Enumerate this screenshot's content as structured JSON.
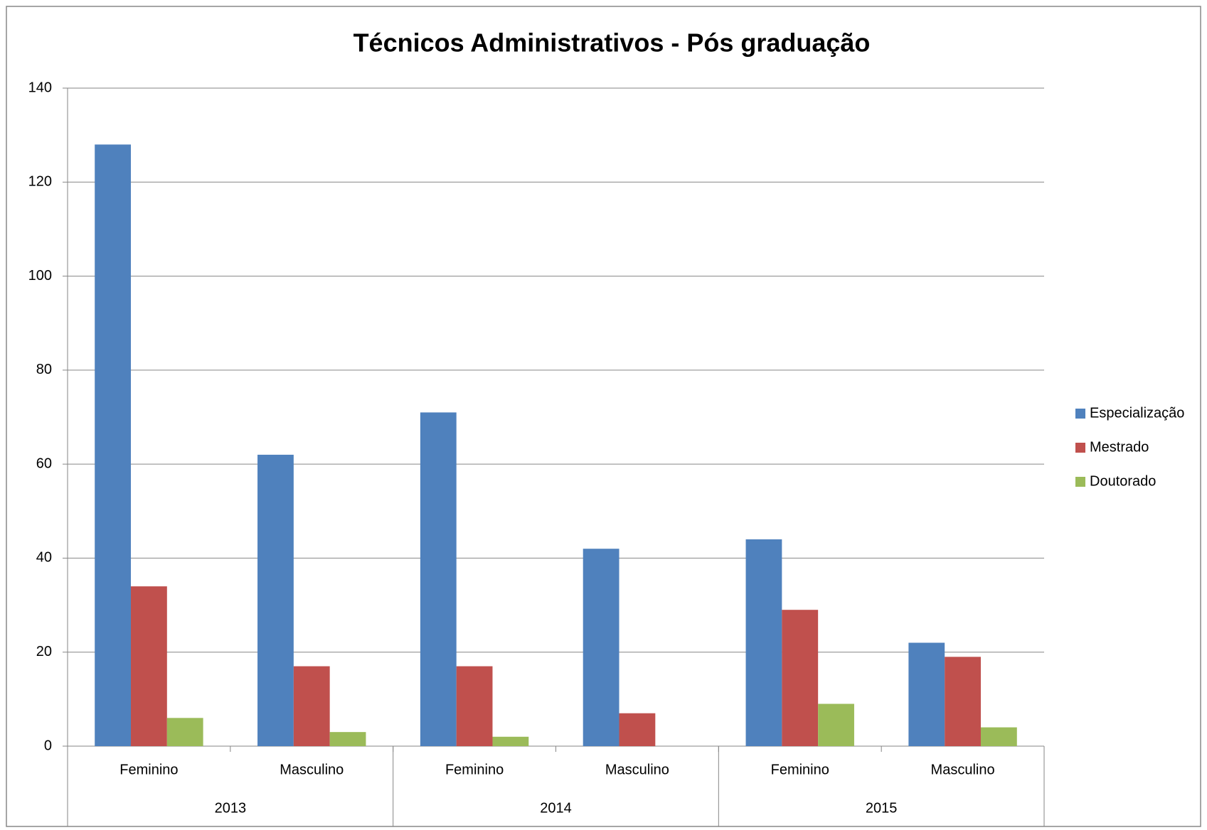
{
  "chart_data": {
    "type": "bar",
    "title": "Técnicos Administrativos - Pós graduação",
    "categories": [
      "Feminino",
      "Masculino",
      "Feminino",
      "Masculino",
      "Feminino",
      "Masculino"
    ],
    "groups": [
      "2013",
      "2014",
      "2015"
    ],
    "series": [
      {
        "name": "Especialização",
        "color": "#4f81bd",
        "values": [
          128,
          62,
          71,
          42,
          44,
          22
        ]
      },
      {
        "name": "Mestrado",
        "color": "#c0504d",
        "values": [
          34,
          17,
          17,
          7,
          29,
          19
        ]
      },
      {
        "name": "Doutorado",
        "color": "#9bbb59",
        "values": [
          6,
          3,
          2,
          0,
          9,
          4
        ]
      }
    ],
    "ylim": [
      0,
      140
    ],
    "yticks": [
      0,
      20,
      40,
      60,
      80,
      100,
      120,
      140
    ],
    "grid": true,
    "legend": "right"
  }
}
